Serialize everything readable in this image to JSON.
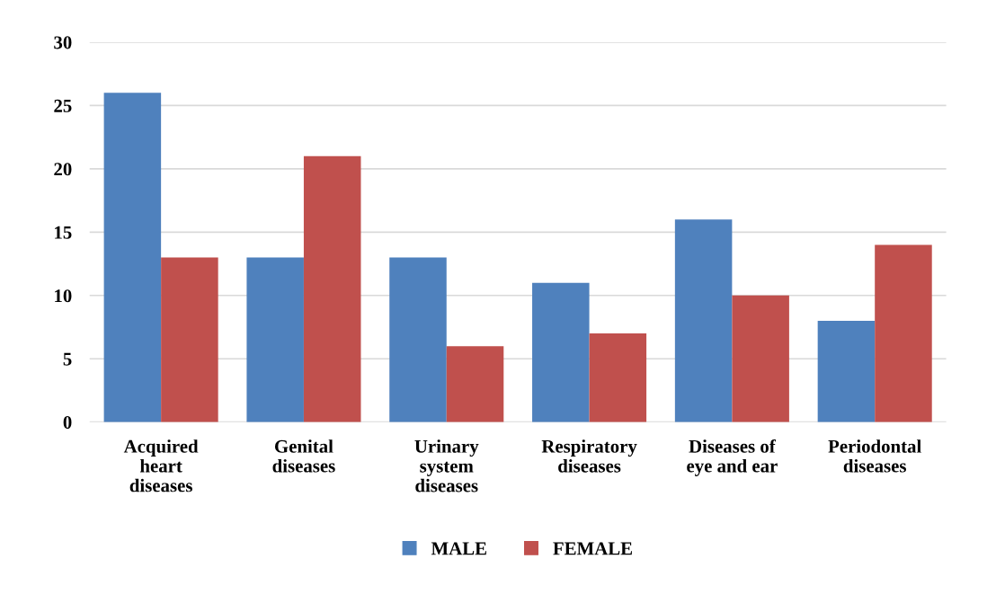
{
  "chart_data": {
    "type": "bar",
    "categories": [
      "Acquired\nheart\ndiseases",
      "Genital\ndiseases",
      "Urinary\nsystem\ndiseases",
      "Respiratory\ndiseases",
      "Diseases of\neye and ear",
      "Periodontal\ndiseases"
    ],
    "series": [
      {
        "name": "MALE",
        "color": "#4f81bd",
        "values": [
          26,
          13,
          13,
          11,
          16,
          8
        ]
      },
      {
        "name": "FEMALE",
        "color": "#c0504d",
        "values": [
          13,
          21,
          6,
          7,
          10,
          14
        ]
      }
    ],
    "ylim": [
      0,
      30
    ],
    "yticks": [
      0,
      5,
      10,
      15,
      20,
      25,
      30
    ],
    "grid": "y",
    "legend": "bottom"
  }
}
